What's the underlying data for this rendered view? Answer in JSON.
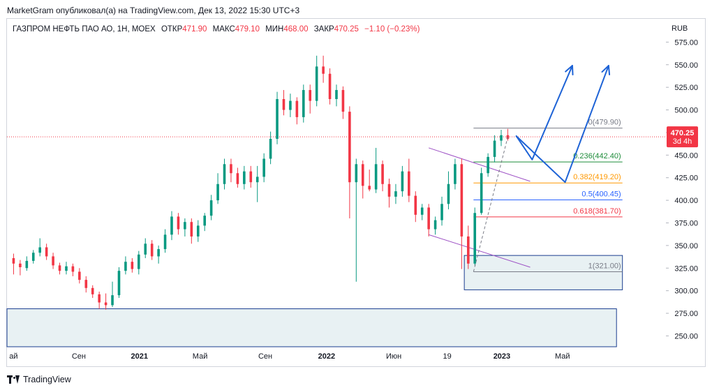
{
  "header": {
    "attribution": "MarketGram опубликовал(а) на TradingView.com, Дек 13, 2022 15:30 UTC+3"
  },
  "legend": {
    "symbol": "ГАЗПРОМ НЕФТЬ ПАО АО, 1Н, MOEX",
    "open_label": "ОТКР",
    "open": "471.90",
    "high_label": "МАКС",
    "high": "479.10",
    "low_label": "МИН",
    "low": "468.00",
    "close_label": "ЗАКР",
    "close": "470.25",
    "change": "−1.10 (−0.23%)"
  },
  "axis": {
    "currency": "RUB"
  },
  "footer": {
    "brand": "TradingView"
  },
  "colors": {
    "up": "#089981",
    "down": "#f23645",
    "drawing_blue": "#1e63d6",
    "zone_fill": "#e8f1f3",
    "zone_border": "#1a3d8f",
    "channel": "#9c4fc4",
    "fib_0": "#787b86",
    "fib_0236": "#1e8c3a",
    "fib_0382": "#ff9800",
    "fib_05": "#2962ff",
    "fib_0618": "#f23645",
    "fib_1": "#787b86"
  },
  "chart_data": {
    "type": "candlestick",
    "y_axis": {
      "range": [
        238,
        583
      ],
      "ticks": [
        250,
        275,
        300,
        325,
        350,
        375,
        400,
        425,
        450,
        475,
        500,
        525,
        550,
        575
      ],
      "tick_labels": [
        "250.00",
        "275.00",
        "300.00",
        "325.00",
        "350.00",
        "375.00",
        "400.00",
        "425.00",
        "450.00",
        "475.00",
        "500.00",
        "525.00",
        "550.00",
        "575.00"
      ],
      "side": "right"
    },
    "x_axis": {
      "range": [
        0,
        100
      ],
      "ticks": [
        {
          "x": 1,
          "label": "ай"
        },
        {
          "x": 10.9,
          "label": "Сен"
        },
        {
          "x": 20.1,
          "label": "2021"
        },
        {
          "x": 29.3,
          "label": "Май"
        },
        {
          "x": 39.2,
          "label": "Сен"
        },
        {
          "x": 48.5,
          "label": "2022"
        },
        {
          "x": 58.7,
          "label": "Июн"
        },
        {
          "x": 66.8,
          "label": "19"
        },
        {
          "x": 75.1,
          "label": "2023"
        },
        {
          "x": 84.3,
          "label": "Май"
        }
      ]
    },
    "last_price": {
      "value": 470.25,
      "label": "470.25",
      "countdown": "3d 4h"
    },
    "candles": [
      [
        1,
        336,
        330,
        341,
        318
      ],
      [
        2,
        330,
        326,
        334,
        317
      ],
      [
        3,
        325,
        333,
        338,
        322
      ],
      [
        4,
        333,
        342,
        345,
        330
      ],
      [
        5,
        342,
        348,
        358,
        338
      ],
      [
        6,
        348,
        338,
        352,
        334
      ],
      [
        7,
        338,
        328,
        342,
        324
      ],
      [
        8,
        328,
        322,
        331,
        318
      ],
      [
        9,
        322,
        327,
        332,
        318
      ],
      [
        10,
        327,
        321,
        330,
        316
      ],
      [
        11,
        321,
        312,
        325,
        308
      ],
      [
        12,
        312,
        303,
        316,
        298
      ],
      [
        13,
        303,
        296,
        306,
        292
      ],
      [
        14,
        296,
        287,
        299,
        280
      ],
      [
        15,
        287,
        284,
        297,
        279
      ],
      [
        16,
        284,
        295,
        310,
        282
      ],
      [
        17,
        295,
        322,
        326,
        292
      ],
      [
        18,
        322,
        332,
        338,
        318
      ],
      [
        19,
        332,
        324,
        336,
        320
      ],
      [
        20,
        324,
        340,
        344,
        318
      ],
      [
        21,
        340,
        352,
        358,
        336
      ],
      [
        22,
        352,
        338,
        356,
        334
      ],
      [
        23,
        338,
        346,
        350,
        330
      ],
      [
        24,
        346,
        362,
        368,
        342
      ],
      [
        25,
        362,
        382,
        388,
        356
      ],
      [
        26,
        382,
        368,
        386,
        362
      ],
      [
        27,
        368,
        376,
        380,
        360
      ],
      [
        28,
        376,
        360,
        380,
        352
      ],
      [
        29,
        360,
        372,
        378,
        354
      ],
      [
        30,
        372,
        383,
        386,
        366
      ],
      [
        31,
        383,
        400,
        406,
        378
      ],
      [
        32,
        400,
        418,
        430,
        396
      ],
      [
        33,
        418,
        440,
        446,
        412
      ],
      [
        34,
        440,
        430,
        446,
        420
      ],
      [
        35,
        430,
        418,
        436,
        414
      ],
      [
        36,
        418,
        432,
        438,
        412
      ],
      [
        37,
        432,
        420,
        438,
        414
      ],
      [
        38,
        420,
        426,
        438,
        398
      ],
      [
        39,
        426,
        446,
        452,
        420
      ],
      [
        40,
        446,
        468,
        476,
        440
      ],
      [
        41,
        468,
        512,
        520,
        462
      ],
      [
        42,
        512,
        500,
        522,
        494
      ],
      [
        43,
        500,
        510,
        518,
        492
      ],
      [
        44,
        510,
        492,
        514,
        484
      ],
      [
        45,
        492,
        522,
        528,
        486
      ],
      [
        46,
        522,
        510,
        528,
        496
      ],
      [
        47,
        510,
        548,
        560,
        504
      ],
      [
        48,
        548,
        540,
        560,
        530
      ],
      [
        49,
        540,
        512,
        546,
        506
      ],
      [
        50,
        512,
        522,
        528,
        504
      ],
      [
        51,
        522,
        498,
        526,
        490
      ],
      [
        52,
        498,
        420,
        504,
        380
      ],
      [
        53,
        420,
        440,
        446,
        310
      ],
      [
        54,
        440,
        416,
        444,
        402
      ],
      [
        55,
        416,
        412,
        434,
        410
      ],
      [
        56,
        412,
        440,
        458,
        408
      ],
      [
        57,
        440,
        418,
        444,
        410
      ],
      [
        58,
        418,
        404,
        424,
        392
      ],
      [
        59,
        404,
        410,
        418,
        396
      ],
      [
        60,
        410,
        432,
        438,
        404
      ],
      [
        61,
        432,
        405,
        446,
        398
      ],
      [
        62,
        405,
        384,
        410,
        376
      ],
      [
        63,
        384,
        392,
        396,
        378
      ],
      [
        64,
        392,
        368,
        396,
        360
      ],
      [
        65,
        368,
        378,
        382,
        362
      ],
      [
        66,
        378,
        396,
        404,
        372
      ],
      [
        67,
        396,
        418,
        432,
        390
      ],
      [
        68,
        418,
        440,
        446,
        412
      ],
      [
        69,
        440,
        360,
        446,
        324
      ],
      [
        70,
        360,
        330,
        372,
        324
      ],
      [
        71,
        330,
        386,
        392,
        328
      ],
      [
        72,
        386,
        430,
        436,
        384
      ],
      [
        73,
        430,
        448,
        452,
        426
      ],
      [
        74,
        448,
        466,
        472,
        442
      ],
      [
        75,
        466,
        472,
        478,
        460
      ],
      [
        76,
        472,
        468,
        479,
        466
      ]
    ],
    "channel": {
      "upper": [
        [
          64,
          458
        ],
        [
          79.4,
          421
        ]
      ],
      "lower": [
        [
          64,
          362
        ],
        [
          79.4,
          326
        ]
      ]
    },
    "fibonacci": {
      "x_range": [
        70.8,
        93.4
      ],
      "levels": [
        {
          "ratio": "0",
          "price": 479.9,
          "label": "0(479.90)",
          "color": "#787b86"
        },
        {
          "ratio": "0.236",
          "price": 442.4,
          "label": "0.236(442.40)",
          "color": "#1e8c3a"
        },
        {
          "ratio": "0.382",
          "price": 419.2,
          "label": "0.382(419.20)",
          "color": "#ff9800"
        },
        {
          "ratio": "0.5",
          "price": 400.45,
          "label": "0.5(400.45)",
          "color": "#2962ff"
        },
        {
          "ratio": "0.618",
          "price": 381.7,
          "label": "0.618(381.70)",
          "color": "#f23645"
        },
        {
          "ratio": "1",
          "price": 321.0,
          "label": "1(321.00)",
          "color": "#787b86"
        }
      ]
    },
    "zones": [
      {
        "x0": 69.4,
        "x1": 93.4,
        "y_low": 301,
        "y_high": 339
      },
      {
        "x0": 0,
        "x1": 92.5,
        "y_low": 238,
        "y_high": 280
      }
    ],
    "trendline": [
      [
        70.8,
        321
      ],
      [
        76,
        470
      ]
    ],
    "projections": [
      [
        [
          77.3,
          471
        ],
        [
          79.7,
          445
        ],
        [
          85.8,
          549
        ]
      ],
      [
        [
          77.3,
          471
        ],
        [
          84.7,
          420
        ],
        [
          91.3,
          549
        ]
      ]
    ]
  }
}
